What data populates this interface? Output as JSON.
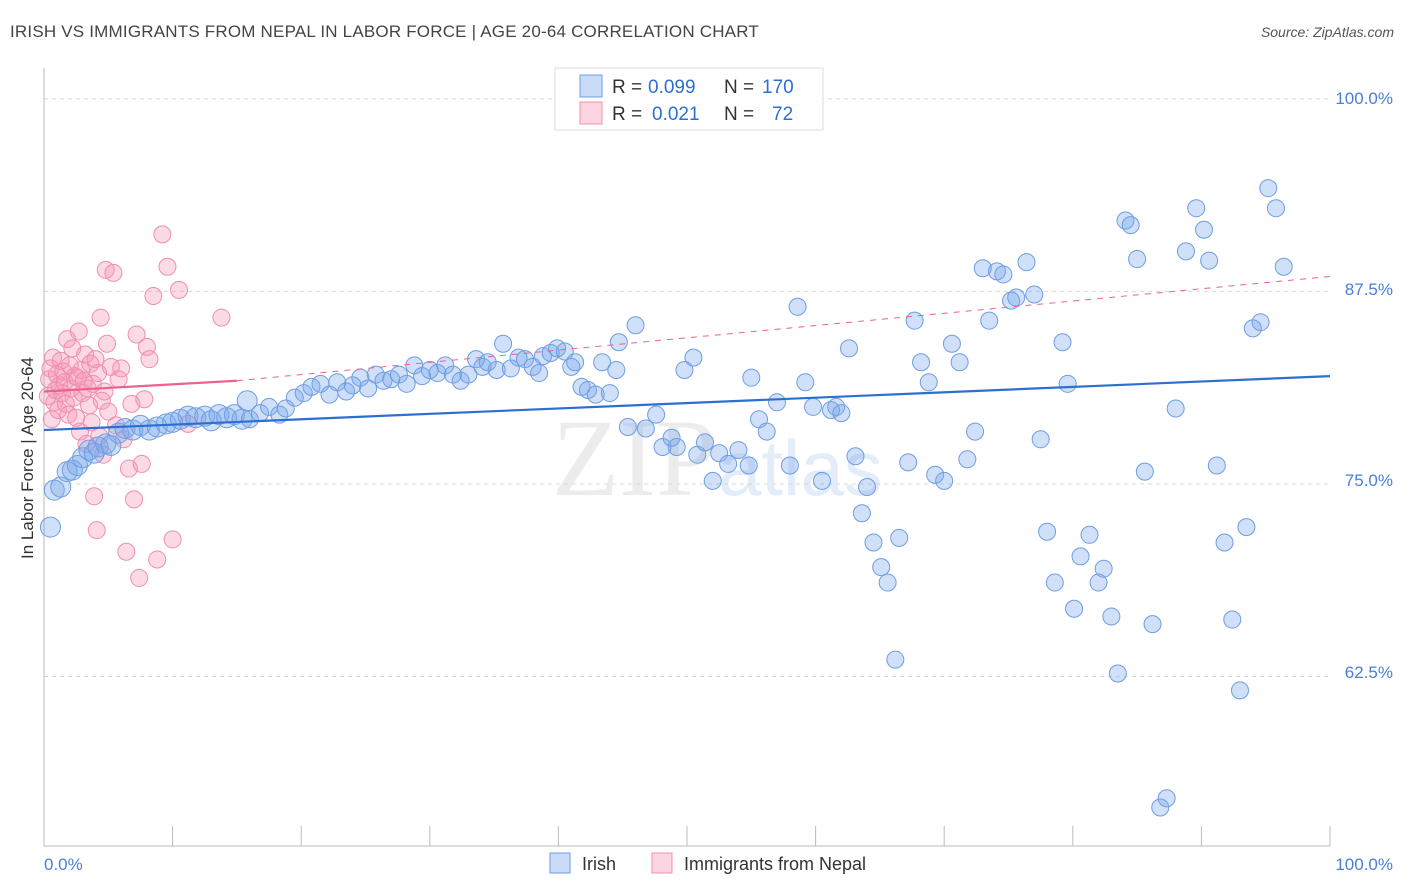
{
  "title": "IRISH VS IMMIGRANTS FROM NEPAL IN LABOR FORCE | AGE 20-64 CORRELATION CHART",
  "source": "Source: ZipAtlas.com",
  "colors": {
    "irish_fill": "rgba(120,165,235,0.35)",
    "irish_stroke": "#6f9de4",
    "irish_line": "#2d6fd0",
    "nepal_fill": "rgba(245,150,180,0.35)",
    "nepal_stroke": "#ef8fb0",
    "nepal_line": "#e8638f",
    "axis_text": "#4a7fd4",
    "grid": "#d8d8d8"
  },
  "legend": {
    "irish": {
      "r_label": "R =",
      "r_value": "0.099",
      "n_label": "N =",
      "n_value": "170"
    },
    "nepal": {
      "r_label": "R =",
      "r_value": "0.021",
      "n_label": "N =",
      "n_value": "72"
    }
  },
  "chart_data": {
    "type": "scatter",
    "title": "IRISH VS IMMIGRANTS FROM NEPAL IN LABOR FORCE | AGE 20-64 CORRELATION CHART",
    "xlabel": "",
    "ylabel": "In Labor Force | Age 20-64",
    "xlim": [
      0,
      100
    ],
    "ylim": [
      51.5,
      102
    ],
    "x_tick_labels": [
      "0.0%",
      "100.0%"
    ],
    "y_ticks": [
      62.5,
      75.0,
      87.5,
      100.0
    ],
    "y_tick_labels": [
      "62.5%",
      "75.0%",
      "87.5%",
      "100.0%"
    ],
    "legend_entries": [
      "Irish",
      "Immigrants from Nepal"
    ],
    "watermark": "ZIPatlas",
    "series": [
      {
        "name": "Irish",
        "R": 0.099,
        "N": 170,
        "trend": {
          "x": [
            0,
            100
          ],
          "y": [
            78.5,
            82.0
          ]
        },
        "points": [
          [
            0.5,
            72.2
          ],
          [
            0.8,
            74.6
          ],
          [
            1.3,
            74.8
          ],
          [
            1.8,
            75.8
          ],
          [
            2.2,
            75.9
          ],
          [
            2.6,
            76.2
          ],
          [
            3.0,
            76.7
          ],
          [
            3.5,
            77.2
          ],
          [
            3.9,
            77.0
          ],
          [
            4.2,
            77.4
          ],
          [
            4.8,
            77.6
          ],
          [
            5.2,
            77.5
          ],
          [
            5.8,
            78.3
          ],
          [
            6.3,
            78.6
          ],
          [
            6.9,
            78.5
          ],
          [
            7.5,
            78.8
          ],
          [
            8.2,
            78.5
          ],
          [
            8.8,
            78.7
          ],
          [
            9.5,
            78.9
          ],
          [
            10.0,
            79.0
          ],
          [
            10.6,
            79.2
          ],
          [
            11.2,
            79.4
          ],
          [
            11.8,
            79.3
          ],
          [
            12.5,
            79.4
          ],
          [
            13.0,
            79.1
          ],
          [
            13.6,
            79.5
          ],
          [
            14.2,
            79.3
          ],
          [
            14.8,
            79.5
          ],
          [
            15.4,
            79.2
          ],
          [
            16.0,
            79.2
          ],
          [
            15.8,
            80.4
          ],
          [
            16.8,
            79.6
          ],
          [
            17.5,
            80.0
          ],
          [
            18.3,
            79.5
          ],
          [
            18.8,
            79.9
          ],
          [
            19.5,
            80.6
          ],
          [
            20.2,
            80.9
          ],
          [
            20.8,
            81.3
          ],
          [
            21.5,
            81.5
          ],
          [
            22.2,
            80.8
          ],
          [
            22.8,
            81.6
          ],
          [
            23.5,
            81.0
          ],
          [
            24.0,
            81.4
          ],
          [
            24.6,
            81.9
          ],
          [
            25.2,
            81.2
          ],
          [
            25.8,
            82.1
          ],
          [
            26.4,
            81.7
          ],
          [
            27.0,
            81.8
          ],
          [
            27.6,
            82.1
          ],
          [
            28.2,
            81.5
          ],
          [
            28.8,
            82.7
          ],
          [
            29.4,
            82.0
          ],
          [
            30.0,
            82.4
          ],
          [
            30.6,
            82.2
          ],
          [
            31.2,
            82.7
          ],
          [
            31.8,
            82.1
          ],
          [
            32.4,
            81.7
          ],
          [
            33.0,
            82.1
          ],
          [
            33.6,
            83.1
          ],
          [
            34.1,
            82.6
          ],
          [
            34.5,
            82.9
          ],
          [
            35.2,
            82.4
          ],
          [
            35.7,
            84.1
          ],
          [
            36.3,
            82.5
          ],
          [
            36.9,
            83.2
          ],
          [
            37.4,
            83.1
          ],
          [
            38.0,
            82.6
          ],
          [
            38.5,
            82.2
          ],
          [
            38.8,
            83.3
          ],
          [
            39.4,
            83.5
          ],
          [
            39.9,
            83.8
          ],
          [
            40.5,
            83.6
          ],
          [
            41.0,
            82.6
          ],
          [
            41.3,
            82.9
          ],
          [
            41.8,
            81.3
          ],
          [
            42.3,
            81.1
          ],
          [
            42.9,
            80.8
          ],
          [
            43.4,
            82.9
          ],
          [
            44.0,
            80.9
          ],
          [
            44.5,
            82.4
          ],
          [
            44.7,
            84.2
          ],
          [
            45.4,
            78.7
          ],
          [
            46.0,
            85.3
          ],
          [
            46.8,
            78.6
          ],
          [
            47.6,
            79.5
          ],
          [
            48.1,
            77.4
          ],
          [
            48.8,
            78.0
          ],
          [
            49.2,
            77.4
          ],
          [
            49.8,
            82.4
          ],
          [
            50.5,
            83.2
          ],
          [
            50.8,
            76.9
          ],
          [
            51.4,
            77.7
          ],
          [
            52.0,
            75.2
          ],
          [
            52.5,
            77.0
          ],
          [
            53.2,
            76.3
          ],
          [
            54.0,
            77.2
          ],
          [
            54.8,
            76.2
          ],
          [
            55.0,
            81.9
          ],
          [
            55.6,
            79.2
          ],
          [
            56.2,
            78.4
          ],
          [
            57.0,
            80.3
          ],
          [
            58.0,
            76.2
          ],
          [
            58.6,
            86.5
          ],
          [
            59.2,
            81.6
          ],
          [
            59.8,
            80.0
          ],
          [
            60.5,
            75.2
          ],
          [
            61.2,
            79.8
          ],
          [
            61.6,
            80.0
          ],
          [
            62.0,
            79.6
          ],
          [
            62.6,
            83.8
          ],
          [
            63.1,
            76.8
          ],
          [
            63.6,
            73.1
          ],
          [
            64.0,
            74.8
          ],
          [
            64.5,
            71.2
          ],
          [
            65.1,
            69.6
          ],
          [
            65.6,
            68.6
          ],
          [
            66.2,
            63.6
          ],
          [
            66.5,
            71.5
          ],
          [
            67.2,
            76.4
          ],
          [
            67.7,
            85.6
          ],
          [
            68.2,
            82.9
          ],
          [
            68.8,
            81.6
          ],
          [
            69.3,
            75.6
          ],
          [
            70.0,
            75.2
          ],
          [
            70.6,
            84.1
          ],
          [
            71.2,
            82.9
          ],
          [
            71.8,
            76.6
          ],
          [
            72.4,
            78.4
          ],
          [
            73.0,
            89.0
          ],
          [
            73.5,
            85.6
          ],
          [
            74.1,
            88.8
          ],
          [
            74.6,
            88.6
          ],
          [
            75.2,
            86.9
          ],
          [
            75.6,
            87.1
          ],
          [
            76.4,
            89.4
          ],
          [
            77.0,
            87.3
          ],
          [
            77.5,
            77.9
          ],
          [
            78.0,
            71.9
          ],
          [
            78.6,
            68.6
          ],
          [
            79.2,
            84.2
          ],
          [
            79.6,
            81.5
          ],
          [
            80.1,
            66.9
          ],
          [
            80.6,
            70.3
          ],
          [
            81.3,
            71.7
          ],
          [
            82.0,
            68.6
          ],
          [
            82.4,
            69.5
          ],
          [
            83.0,
            66.4
          ],
          [
            83.5,
            62.7
          ],
          [
            84.1,
            92.1
          ],
          [
            84.5,
            91.8
          ],
          [
            85.0,
            89.6
          ],
          [
            85.6,
            75.8
          ],
          [
            86.2,
            65.9
          ],
          [
            86.8,
            54.0
          ],
          [
            87.3,
            54.6
          ],
          [
            88.0,
            79.9
          ],
          [
            88.8,
            90.1
          ],
          [
            89.6,
            92.9
          ],
          [
            90.2,
            91.5
          ],
          [
            90.6,
            89.5
          ],
          [
            91.2,
            76.2
          ],
          [
            91.8,
            71.2
          ],
          [
            92.4,
            66.2
          ],
          [
            93.0,
            61.6
          ],
          [
            93.5,
            72.2
          ],
          [
            94.0,
            85.1
          ],
          [
            94.6,
            85.5
          ],
          [
            95.2,
            94.2
          ],
          [
            95.8,
            92.9
          ],
          [
            96.4,
            89.1
          ]
        ]
      },
      {
        "name": "Immigrants from Nepal",
        "R": 0.021,
        "N": 72,
        "trend": {
          "x": [
            0,
            15
          ],
          "y": [
            81.0,
            81.7
          ]
        },
        "points": [
          [
            0.3,
            80.7
          ],
          [
            0.4,
            81.8
          ],
          [
            0.5,
            82.5
          ],
          [
            0.6,
            79.2
          ],
          [
            0.7,
            83.2
          ],
          [
            0.8,
            80.3
          ],
          [
            0.9,
            81.1
          ],
          [
            1.0,
            82.1
          ],
          [
            1.1,
            79.8
          ],
          [
            1.2,
            81.4
          ],
          [
            1.3,
            83.0
          ],
          [
            1.4,
            80.9
          ],
          [
            1.5,
            82.3
          ],
          [
            1.6,
            81.6
          ],
          [
            1.7,
            80.2
          ],
          [
            1.8,
            84.4
          ],
          [
            1.9,
            79.5
          ],
          [
            2.0,
            82.7
          ],
          [
            2.1,
            81.2
          ],
          [
            2.2,
            83.8
          ],
          [
            2.3,
            80.6
          ],
          [
            2.4,
            82.0
          ],
          [
            2.5,
            79.3
          ],
          [
            2.6,
            81.9
          ],
          [
            2.7,
            84.9
          ],
          [
            2.8,
            78.4
          ],
          [
            2.9,
            82.4
          ],
          [
            3.0,
            80.9
          ],
          [
            3.1,
            81.7
          ],
          [
            3.2,
            83.4
          ],
          [
            3.3,
            77.6
          ],
          [
            3.4,
            81.2
          ],
          [
            3.5,
            80.1
          ],
          [
            3.6,
            82.8
          ],
          [
            3.7,
            79.0
          ],
          [
            3.8,
            81.5
          ],
          [
            3.9,
            74.2
          ],
          [
            4.0,
            83.1
          ],
          [
            4.1,
            72.0
          ],
          [
            4.2,
            82.2
          ],
          [
            4.3,
            78.1
          ],
          [
            4.4,
            85.8
          ],
          [
            4.5,
            80.4
          ],
          [
            4.6,
            76.9
          ],
          [
            4.7,
            81.0
          ],
          [
            4.8,
            88.9
          ],
          [
            4.9,
            84.1
          ],
          [
            5.0,
            79.7
          ],
          [
            5.2,
            82.6
          ],
          [
            5.4,
            88.7
          ],
          [
            5.6,
            78.8
          ],
          [
            5.8,
            81.8
          ],
          [
            6.0,
            82.5
          ],
          [
            6.2,
            77.9
          ],
          [
            6.4,
            70.6
          ],
          [
            6.6,
            76.0
          ],
          [
            6.8,
            80.2
          ],
          [
            7.0,
            74.0
          ],
          [
            7.2,
            84.7
          ],
          [
            7.4,
            68.9
          ],
          [
            7.6,
            76.3
          ],
          [
            7.8,
            80.5
          ],
          [
            8.0,
            83.9
          ],
          [
            8.2,
            83.1
          ],
          [
            8.5,
            87.2
          ],
          [
            8.8,
            70.1
          ],
          [
            9.2,
            91.2
          ],
          [
            9.6,
            89.1
          ],
          [
            10.0,
            71.4
          ],
          [
            10.5,
            87.6
          ],
          [
            11.2,
            78.9
          ],
          [
            13.8,
            85.8
          ]
        ]
      }
    ]
  },
  "y_axis_title": "In Labor Force | Age 20-64",
  "x_ticks": {
    "left": "0.0%",
    "right": "100.0%"
  },
  "y_ticks": {
    "t1": "100.0%",
    "t2": "87.5%",
    "t3": "75.0%",
    "t4": "62.5%"
  },
  "bottom_legend": {
    "irish": "Irish",
    "nepal": "Immigrants from Nepal"
  },
  "watermark": {
    "zip": "ZIP",
    "atlas": "atlas"
  }
}
